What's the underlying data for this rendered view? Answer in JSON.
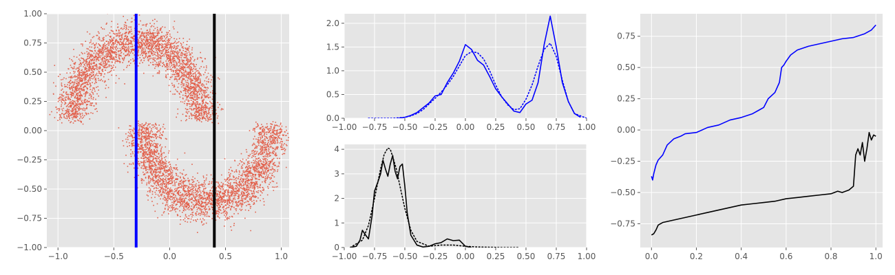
{
  "colors": {
    "background": "#ffffff",
    "axes": "#e5e5e5",
    "grid": "#ffffff",
    "tick": "#555555",
    "scatter": "#e24a33",
    "blue": "#0000ff",
    "black": "#000000"
  },
  "chart_data": [
    {
      "type": "scatter",
      "title": "",
      "xlabel": "",
      "ylabel": "",
      "xlim": [
        -1.1,
        1.07
      ],
      "ylim": [
        -1.0,
        1.0
      ],
      "xticks": [
        -1.0,
        -0.5,
        0.0,
        0.5,
        1.0
      ],
      "xtick_labels": [
        "−1.0",
        "−0.5",
        "0.0",
        "0.5",
        "1.0"
      ],
      "yticks": [
        -1.0,
        -0.75,
        -0.5,
        -0.25,
        0.0,
        0.25,
        0.5,
        0.75,
        1.0
      ],
      "ytick_labels": [
        "−1.00",
        "−0.75",
        "−0.50",
        "−0.25",
        "0.00",
        "0.25",
        "0.50",
        "0.75",
        "1.00"
      ],
      "grid": true,
      "series": [
        {
          "kind": "two-moons",
          "color": "#e24a33",
          "upper_moon": {
            "center": [
              -0.3,
              0.1
            ],
            "radius": 0.55,
            "angle_deg": [
              0,
              180
            ]
          },
          "lower_moon": {
            "center": [
              0.33,
              0.05
            ],
            "radius": 0.55,
            "angle_deg": [
              180,
              360
            ]
          }
        }
      ],
      "vlines": [
        {
          "x": -0.3,
          "color": "#0000ff"
        },
        {
          "x": 0.4,
          "color": "#000000"
        }
      ]
    },
    {
      "type": "line",
      "title": "",
      "xlabel": "",
      "ylabel": "",
      "xlim": [
        -1.0,
        1.0
      ],
      "ylim": [
        0.0,
        2.2
      ],
      "xticks": [
        -1.0,
        -0.75,
        -0.5,
        -0.25,
        0.0,
        0.25,
        0.5,
        0.75,
        1.0
      ],
      "xtick_labels": [
        "−1.00",
        "−0.75",
        "−0.50",
        "−0.25",
        "0.00",
        "0.25",
        "0.50",
        "0.75",
        "1.00"
      ],
      "yticks": [
        0.0,
        0.5,
        1.0,
        1.5,
        2.0
      ],
      "ytick_labels": [
        "0.0",
        "0.5",
        "1.0",
        "1.5",
        "2.0"
      ],
      "grid": true,
      "series": [
        {
          "style": "solid",
          "color": "#0000ff",
          "x": [
            -0.55,
            -0.5,
            -0.45,
            -0.4,
            -0.35,
            -0.3,
            -0.25,
            -0.2,
            -0.15,
            -0.1,
            -0.05,
            0.0,
            0.05,
            0.1,
            0.15,
            0.2,
            0.25,
            0.3,
            0.35,
            0.4,
            0.45,
            0.5,
            0.55,
            0.6,
            0.65,
            0.7,
            0.75,
            0.8,
            0.85,
            0.9,
            0.95
          ],
          "y": [
            0.0,
            0.02,
            0.06,
            0.12,
            0.22,
            0.32,
            0.47,
            0.5,
            0.75,
            0.95,
            1.2,
            1.55,
            1.45,
            1.22,
            1.12,
            0.88,
            0.62,
            0.45,
            0.3,
            0.15,
            0.12,
            0.3,
            0.38,
            0.75,
            1.55,
            2.15,
            1.5,
            0.75,
            0.35,
            0.1,
            0.02
          ]
        },
        {
          "style": "dotted",
          "color": "#0000ff",
          "x": [
            -0.8,
            -0.6,
            -0.5,
            -0.45,
            -0.4,
            -0.35,
            -0.3,
            -0.25,
            -0.2,
            -0.15,
            -0.1,
            -0.05,
            0.0,
            0.05,
            0.1,
            0.15,
            0.2,
            0.25,
            0.3,
            0.35,
            0.4,
            0.45,
            0.5,
            0.55,
            0.6,
            0.65,
            0.7,
            0.75,
            0.8,
            0.85,
            0.9,
            1.0
          ],
          "y": [
            0.0,
            0.0,
            0.02,
            0.05,
            0.1,
            0.18,
            0.3,
            0.42,
            0.55,
            0.7,
            0.88,
            1.1,
            1.32,
            1.4,
            1.38,
            1.25,
            1.0,
            0.7,
            0.45,
            0.28,
            0.18,
            0.2,
            0.4,
            0.7,
            1.1,
            1.45,
            1.58,
            1.3,
            0.8,
            0.35,
            0.1,
            0.0
          ]
        }
      ]
    },
    {
      "type": "line",
      "title": "",
      "xlabel": "",
      "ylabel": "",
      "xlim": [
        -1.0,
        1.0
      ],
      "ylim": [
        0.0,
        4.2
      ],
      "xticks": [
        -1.0,
        -0.75,
        -0.5,
        -0.25,
        0.0,
        0.25,
        0.5,
        0.75,
        1.0
      ],
      "xtick_labels": [
        "−1.00",
        "−0.75",
        "−0.50",
        "−0.25",
        "0.00",
        "0.25",
        "0.50",
        "0.75",
        "1.00"
      ],
      "yticks": [
        0,
        1,
        2,
        3,
        4
      ],
      "ytick_labels": [
        "0",
        "1",
        "2",
        "3",
        "4"
      ],
      "grid": true,
      "series": [
        {
          "style": "solid",
          "color": "#000000",
          "x": [
            -0.95,
            -0.9,
            -0.87,
            -0.85,
            -0.83,
            -0.8,
            -0.77,
            -0.75,
            -0.72,
            -0.7,
            -0.68,
            -0.66,
            -0.64,
            -0.62,
            -0.6,
            -0.58,
            -0.56,
            -0.54,
            -0.52,
            -0.5,
            -0.48,
            -0.45,
            -0.4,
            -0.35,
            -0.3,
            -0.25,
            -0.2,
            -0.15,
            -0.1,
            -0.05,
            0.0,
            0.05
          ],
          "y": [
            0.0,
            0.05,
            0.3,
            0.7,
            0.55,
            0.35,
            1.3,
            2.3,
            2.7,
            3.0,
            3.55,
            3.2,
            2.9,
            3.4,
            3.75,
            3.1,
            2.8,
            3.3,
            3.4,
            2.5,
            1.4,
            0.5,
            0.1,
            0.02,
            0.05,
            0.15,
            0.2,
            0.35,
            0.28,
            0.3,
            0.05,
            0.0
          ]
        },
        {
          "style": "dotted",
          "color": "#000000",
          "x": [
            -0.95,
            -0.85,
            -0.8,
            -0.75,
            -0.7,
            -0.67,
            -0.64,
            -0.62,
            -0.6,
            -0.57,
            -0.54,
            -0.5,
            -0.45,
            -0.4,
            -0.3,
            -0.2,
            -0.1,
            0.0,
            0.1,
            0.2,
            0.3,
            0.4,
            0.45
          ],
          "y": [
            0.0,
            0.3,
            0.9,
            2.0,
            3.2,
            3.8,
            4.05,
            4.0,
            3.7,
            3.2,
            2.5,
            1.6,
            0.7,
            0.25,
            0.05,
            0.1,
            0.1,
            0.05,
            0.02,
            0.01,
            0.0,
            0.0,
            0.0
          ]
        }
      ]
    },
    {
      "type": "line",
      "title": "",
      "xlabel": "",
      "ylabel": "",
      "xlim": [
        -0.05,
        1.03
      ],
      "ylim": [
        -0.94,
        0.93
      ],
      "xticks": [
        0.0,
        0.2,
        0.4,
        0.6,
        0.8,
        1.0
      ],
      "xtick_labels": [
        "0.0",
        "0.2",
        "0.4",
        "0.6",
        "0.8",
        "1.0"
      ],
      "yticks": [
        -0.75,
        -0.5,
        -0.25,
        0.0,
        0.25,
        0.5,
        0.75
      ],
      "ytick_labels": [
        "−0.75",
        "−0.50",
        "−0.25",
        "0.00",
        "0.25",
        "0.50",
        "0.75"
      ],
      "grid": true,
      "series": [
        {
          "style": "solid",
          "color": "#0000ff",
          "x": [
            0.0,
            0.005,
            0.01,
            0.02,
            0.03,
            0.05,
            0.07,
            0.1,
            0.13,
            0.15,
            0.2,
            0.25,
            0.3,
            0.35,
            0.4,
            0.45,
            0.48,
            0.5,
            0.52,
            0.55,
            0.57,
            0.58,
            0.59,
            0.6,
            0.62,
            0.65,
            0.7,
            0.75,
            0.8,
            0.85,
            0.9,
            0.95,
            0.98,
            1.0
          ],
          "y": [
            -0.37,
            -0.4,
            -0.35,
            -0.28,
            -0.24,
            -0.2,
            -0.12,
            -0.07,
            -0.05,
            -0.03,
            -0.02,
            0.02,
            0.04,
            0.08,
            0.1,
            0.13,
            0.16,
            0.18,
            0.25,
            0.3,
            0.38,
            0.5,
            0.52,
            0.55,
            0.6,
            0.64,
            0.67,
            0.69,
            0.71,
            0.73,
            0.74,
            0.77,
            0.8,
            0.84
          ]
        },
        {
          "style": "solid",
          "color": "#000000",
          "x": [
            0.0,
            0.01,
            0.02,
            0.03,
            0.05,
            0.1,
            0.15,
            0.2,
            0.25,
            0.3,
            0.35,
            0.4,
            0.45,
            0.5,
            0.55,
            0.6,
            0.65,
            0.7,
            0.75,
            0.8,
            0.83,
            0.85,
            0.88,
            0.9,
            0.91,
            0.92,
            0.93,
            0.94,
            0.95,
            0.96,
            0.97,
            0.98,
            0.99,
            1.0
          ],
          "y": [
            -0.84,
            -0.83,
            -0.8,
            -0.76,
            -0.74,
            -0.72,
            -0.7,
            -0.68,
            -0.66,
            -0.64,
            -0.62,
            -0.6,
            -0.59,
            -0.58,
            -0.57,
            -0.55,
            -0.54,
            -0.53,
            -0.52,
            -0.51,
            -0.49,
            -0.5,
            -0.48,
            -0.45,
            -0.2,
            -0.15,
            -0.2,
            -0.1,
            -0.25,
            -0.15,
            -0.02,
            -0.08,
            -0.04,
            -0.05
          ]
        }
      ]
    }
  ]
}
